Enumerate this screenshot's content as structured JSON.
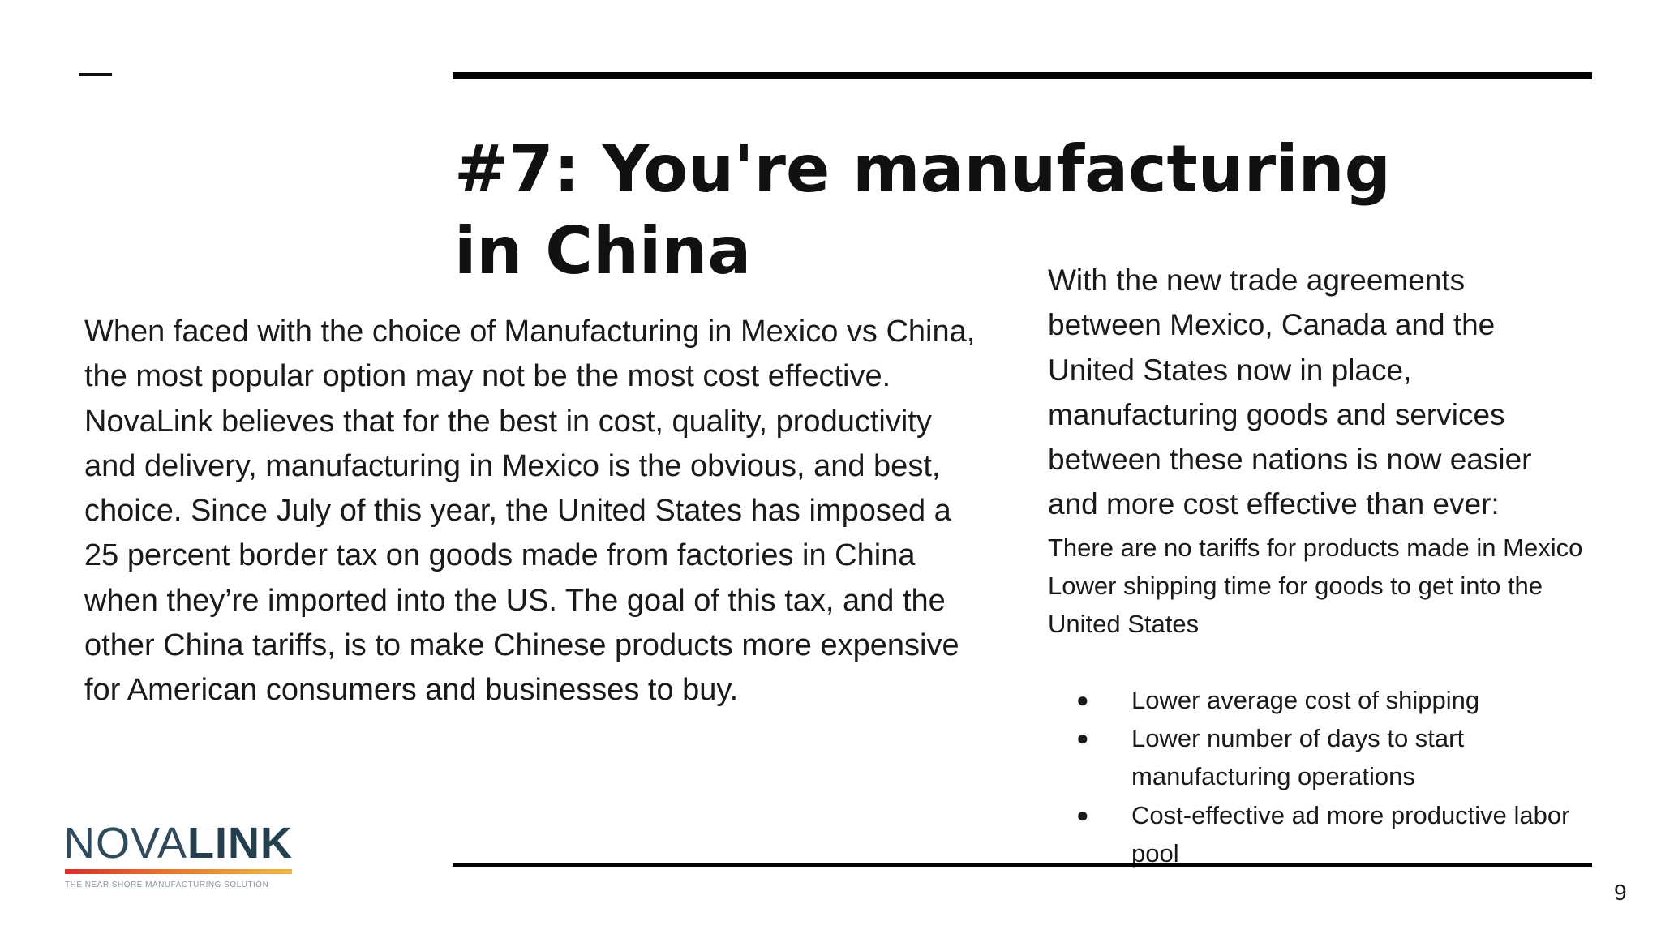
{
  "slide": {
    "title": "#7: You're manufacturing in China",
    "body_left": "When faced with the choice of Manufacturing in Mexico vs China, the most popular option may not be the most cost effective.  NovaLink believes that for the best in cost, quality, productivity and delivery, manufacturing in Mexico is the obvious, and best, choice. Since July of this year, the United States has imposed a 25 percent border tax on goods made from factories in China when they’re imported into the US. The goal of this tax, and the other China tariffs, is to make Chinese products more expensive for American consumers and businesses to buy.",
    "right_intro": "With the new trade agreements between Mexico, Canada and the United States now in place, manufacturing goods and services between these nations is now easier and more cost effective than ever:",
    "right_small": "There are no tariffs for products made in Mexico Lower shipping time for goods to get into the United States",
    "bullets": [
      {
        "text": "Lower average cost of shipping"
      },
      {
        "text": "Lower number of days to start manufacturing operations"
      },
      {
        "text": "Cost-effective ad more productive labor pool"
      }
    ],
    "page_number": "9"
  },
  "logo": {
    "word_part1": "NOVA",
    "word_part2": "LINK",
    "tagline": "THE NEAR SHORE MANUFACTURING SOLUTION",
    "colors": {
      "text": "#2e4a5c",
      "bar_start": "#d6302b",
      "bar_end": "#f0b640"
    }
  }
}
